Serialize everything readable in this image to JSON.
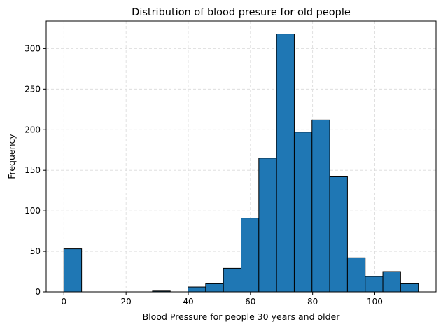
{
  "chart_data": {
    "type": "bar",
    "subtype": "histogram",
    "title": "Distribution of blood presure for old people",
    "xlabel": "Blood Pressure for people 30 years and older",
    "ylabel": "Frequency",
    "xlim": [
      -5.7,
      119.7
    ],
    "ylim": [
      0,
      334
    ],
    "xticks": [
      0,
      20,
      40,
      60,
      80,
      100
    ],
    "yticks": [
      0,
      50,
      100,
      150,
      200,
      250,
      300
    ],
    "grid": true,
    "bin_width": 5.7,
    "bins": [
      {
        "x0": 0.0,
        "x1": 5.7,
        "count": 53
      },
      {
        "x0": 5.7,
        "x1": 11.4,
        "count": 0
      },
      {
        "x0": 11.4,
        "x1": 17.1,
        "count": 0
      },
      {
        "x0": 17.1,
        "x1": 22.8,
        "count": 0
      },
      {
        "x0": 22.8,
        "x1": 28.5,
        "count": 0
      },
      {
        "x0": 28.5,
        "x1": 34.2,
        "count": 1
      },
      {
        "x0": 34.2,
        "x1": 39.9,
        "count": 0
      },
      {
        "x0": 39.9,
        "x1": 45.6,
        "count": 6
      },
      {
        "x0": 45.6,
        "x1": 51.3,
        "count": 10
      },
      {
        "x0": 51.3,
        "x1": 57.0,
        "count": 29
      },
      {
        "x0": 57.0,
        "x1": 62.7,
        "count": 91
      },
      {
        "x0": 62.7,
        "x1": 68.4,
        "count": 165
      },
      {
        "x0": 68.4,
        "x1": 74.1,
        "count": 318
      },
      {
        "x0": 74.1,
        "x1": 79.8,
        "count": 197
      },
      {
        "x0": 79.8,
        "x1": 85.5,
        "count": 212
      },
      {
        "x0": 85.5,
        "x1": 91.2,
        "count": 142
      },
      {
        "x0": 91.2,
        "x1": 96.9,
        "count": 42
      },
      {
        "x0": 96.9,
        "x1": 102.6,
        "count": 19
      },
      {
        "x0": 102.6,
        "x1": 108.3,
        "count": 25
      },
      {
        "x0": 108.3,
        "x1": 114.0,
        "count": 10
      }
    ],
    "colors": {
      "bar_fill": "#1f77b4",
      "bar_edge": "#000000",
      "grid": "#d9d9d9"
    }
  }
}
